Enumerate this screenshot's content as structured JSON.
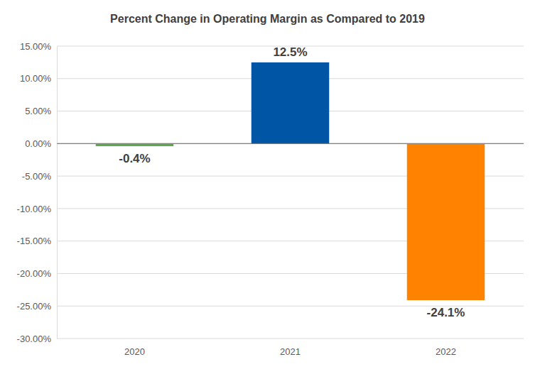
{
  "chart_data": {
    "type": "bar",
    "title": "Percent Change in Operating Margin as Compared to 2019",
    "categories": [
      "2020",
      "2021",
      "2022"
    ],
    "values": [
      -0.4,
      12.5,
      -24.1
    ],
    "value_labels": [
      "-0.4%",
      "12.5%",
      "-24.1%"
    ],
    "colors": [
      "#5cab48",
      "#0055a4",
      "#ff8200"
    ],
    "ylim": [
      -30,
      15
    ],
    "yticks": [
      {
        "value": -30,
        "label": "-30.00%"
      },
      {
        "value": -25,
        "label": "-25.00%"
      },
      {
        "value": -20,
        "label": "-20.00%"
      },
      {
        "value": -15,
        "label": "-15.00%"
      },
      {
        "value": -10,
        "label": "-10.00%"
      },
      {
        "value": -5,
        "label": "-5.00%"
      },
      {
        "value": 0,
        "label": "0.00%"
      },
      {
        "value": 5,
        "label": "5.00%"
      },
      {
        "value": 10,
        "label": "10.00%"
      },
      {
        "value": 15,
        "label": "15.00%"
      }
    ],
    "grid": true,
    "data_labels": true
  }
}
